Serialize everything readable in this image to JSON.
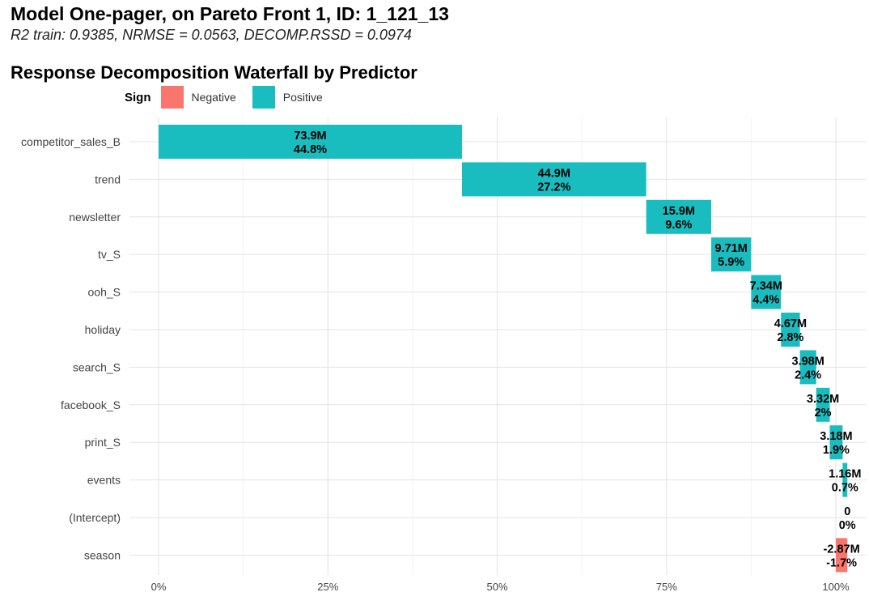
{
  "title": "Model One-pager, on Pareto Front 1, ID: 1_121_13",
  "subtitle": "R2 train: 0.9385, NRMSE = 0.0563, DECOMP.RSSD = 0.0974",
  "chart_title": "Response Decomposition Waterfall by Predictor",
  "legend": {
    "title": "Sign",
    "items": [
      {
        "label": "Negative",
        "color": "#F8766D"
      },
      {
        "label": "Positive",
        "color": "#1ABDBF"
      }
    ]
  },
  "chart_data": {
    "type": "bar",
    "orientation": "horizontal-waterfall",
    "x_ticks": [
      {
        "value": 0,
        "label": "0%"
      },
      {
        "value": 25,
        "label": "25%"
      },
      {
        "value": 50,
        "label": "50%"
      },
      {
        "value": 75,
        "label": "75%"
      },
      {
        "value": 100,
        "label": "100%"
      }
    ],
    "xlim": [
      -1.5,
      103
    ],
    "grid": true,
    "legend_position": "top-left",
    "bars": [
      {
        "predictor": "competitor_sales_B",
        "start": 0,
        "end": 44.8,
        "sign": "Positive",
        "value_label": "73.9M",
        "pct_label": "44.8%"
      },
      {
        "predictor": "trend",
        "start": 44.8,
        "end": 72.0,
        "sign": "Positive",
        "value_label": "44.9M",
        "pct_label": "27.2%"
      },
      {
        "predictor": "newsletter",
        "start": 72.0,
        "end": 81.6,
        "sign": "Positive",
        "value_label": "15.9M",
        "pct_label": "9.6%"
      },
      {
        "predictor": "tv_S",
        "start": 81.6,
        "end": 87.5,
        "sign": "Positive",
        "value_label": "9.71M",
        "pct_label": "5.9%"
      },
      {
        "predictor": "ooh_S",
        "start": 87.5,
        "end": 91.9,
        "sign": "Positive",
        "value_label": "7.34M",
        "pct_label": "4.4%"
      },
      {
        "predictor": "holiday",
        "start": 91.9,
        "end": 94.7,
        "sign": "Positive",
        "value_label": "4.67M",
        "pct_label": "2.8%"
      },
      {
        "predictor": "search_S",
        "start": 94.7,
        "end": 97.1,
        "sign": "Positive",
        "value_label": "3.98M",
        "pct_label": "2.4%"
      },
      {
        "predictor": "facebook_S",
        "start": 97.1,
        "end": 99.1,
        "sign": "Positive",
        "value_label": "3.32M",
        "pct_label": "2%"
      },
      {
        "predictor": "print_S",
        "start": 99.1,
        "end": 101.0,
        "sign": "Positive",
        "value_label": "3.18M",
        "pct_label": "1.9%"
      },
      {
        "predictor": "events",
        "start": 101.0,
        "end": 101.7,
        "sign": "Positive",
        "value_label": "1.16M",
        "pct_label": "0.7%"
      },
      {
        "predictor": "(Intercept)",
        "start": 101.7,
        "end": 101.7,
        "sign": "Positive",
        "value_label": "0",
        "pct_label": "0%"
      },
      {
        "predictor": "season",
        "start": 101.7,
        "end": 100.0,
        "sign": "Negative",
        "value_label": "-2.87M",
        "pct_label": "-1.7%"
      }
    ]
  }
}
